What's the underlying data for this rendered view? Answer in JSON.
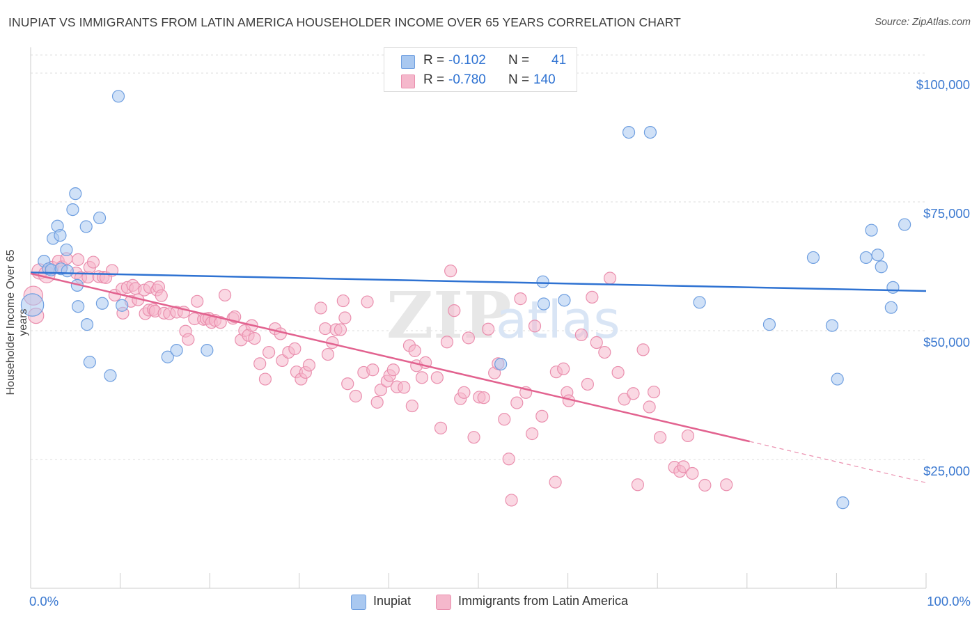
{
  "title": "INUPIAT VS IMMIGRANTS FROM LATIN AMERICA HOUSEHOLDER INCOME OVER 65 YEARS CORRELATION CHART",
  "source": "Source: ZipAtlas.com",
  "watermark": {
    "zip": "ZIP",
    "atlas": "atlas"
  },
  "colors": {
    "inupiat_fill": "#a9c8f0",
    "inupiat_stroke": "#6f9fe0",
    "inupiat_line": "#2e72d2",
    "latin_fill": "#f5b8cc",
    "latin_stroke": "#ea8fae",
    "latin_line": "#e2628f",
    "axis_text": "#3a78d0",
    "grid": "#dddddd"
  },
  "stats": [
    {
      "r_label": "R =",
      "r_value": "-0.102",
      "n_label": "N =",
      "n_value": "41"
    },
    {
      "r_label": "R =",
      "r_value": "-0.780",
      "n_label": "N =",
      "n_value": "140"
    }
  ],
  "chart_data": {
    "type": "scatter",
    "title": "INUPIAT VS IMMIGRANTS FROM LATIN AMERICA HOUSEHOLDER INCOME OVER 65 YEARS CORRELATION CHART",
    "xlabel": "",
    "ylabel": "Householder Income Over 65 years",
    "xlim": [
      0,
      100
    ],
    "ylim": [
      0,
      105000
    ],
    "x_tick_labels": [
      "0.0%",
      "100.0%"
    ],
    "y_ticks": [
      {
        "value": 25000,
        "label": "$25,000"
      },
      {
        "value": 50000,
        "label": "$50,000"
      },
      {
        "value": 75000,
        "label": "$75,000"
      },
      {
        "value": 100000,
        "label": "$100,000"
      }
    ],
    "legend": [
      "Inupiat",
      "Immigrants from Latin America"
    ],
    "series": [
      {
        "name": "Inupiat",
        "trend": {
          "x0": 0,
          "y0": 61300,
          "x1": 100,
          "y1": 57700,
          "solid_until": 100
        },
        "points": [
          [
            0.2,
            55000,
            1.9
          ],
          [
            1.5,
            63500,
            1
          ],
          [
            2,
            62000,
            1
          ],
          [
            2.3,
            61800,
            1
          ],
          [
            2.5,
            67900,
            1
          ],
          [
            3,
            70300,
            1
          ],
          [
            3.3,
            68500,
            1
          ],
          [
            3.4,
            62000,
            1
          ],
          [
            4,
            65700,
            1
          ],
          [
            4.1,
            61600,
            1
          ],
          [
            4.7,
            73500,
            1
          ],
          [
            5,
            76600,
            1
          ],
          [
            5.2,
            58800,
            1
          ],
          [
            5.3,
            54700,
            1
          ],
          [
            6.2,
            70200,
            1
          ],
          [
            6.3,
            51200,
            1
          ],
          [
            6.6,
            43900,
            1
          ],
          [
            7.7,
            71900,
            1
          ],
          [
            8,
            55300,
            1
          ],
          [
            8.9,
            41300,
            1
          ],
          [
            9.8,
            95500,
            1
          ],
          [
            10.2,
            54900,
            1
          ],
          [
            15.3,
            44900,
            1
          ],
          [
            16.3,
            46200,
            1
          ],
          [
            19.7,
            46200,
            1
          ],
          [
            52.5,
            43500,
            1
          ],
          [
            57.2,
            59500,
            1
          ],
          [
            57.3,
            55200,
            1
          ],
          [
            59.6,
            55900,
            1
          ],
          [
            66.8,
            88500,
            1
          ],
          [
            69.2,
            88500,
            1
          ],
          [
            74.7,
            55500,
            1
          ],
          [
            82.5,
            51200,
            1
          ],
          [
            87.4,
            64200,
            1
          ],
          [
            89.5,
            51000,
            1
          ],
          [
            90.1,
            40600,
            1
          ],
          [
            90.7,
            16600,
            1
          ],
          [
            93.3,
            64200,
            1
          ],
          [
            93.9,
            69500,
            1
          ],
          [
            94.6,
            64700,
            1
          ],
          [
            95,
            62400,
            1
          ],
          [
            96.1,
            54500,
            1
          ],
          [
            96.3,
            58400,
            1
          ],
          [
            97.6,
            70600,
            1
          ]
        ]
      },
      {
        "name": "Immigrants from Latin America",
        "trend": {
          "x0": 0,
          "y0": 61100,
          "x1": 100,
          "y1": 20500,
          "solid_until": 80.3
        },
        "points": [
          [
            0.3,
            56800,
            1.6
          ],
          [
            0.6,
            52900,
            1.3
          ],
          [
            1,
            61500,
            1.3
          ],
          [
            1.8,
            60900,
            1.4
          ],
          [
            2.4,
            62200,
            1.1
          ],
          [
            3.1,
            63500,
            1
          ],
          [
            3.5,
            62400,
            1
          ],
          [
            4,
            64000,
            1
          ],
          [
            5.1,
            61200,
            1
          ],
          [
            5.3,
            63800,
            1
          ],
          [
            5.6,
            60300,
            1
          ],
          [
            6.4,
            60400,
            1
          ],
          [
            6.6,
            62300,
            1
          ],
          [
            7,
            63300,
            1
          ],
          [
            7.6,
            60500,
            1
          ],
          [
            8.1,
            60400,
            1
          ],
          [
            8.4,
            60300,
            1
          ],
          [
            9.1,
            61700,
            1
          ],
          [
            9.4,
            56900,
            1
          ],
          [
            10.2,
            58100,
            1
          ],
          [
            10.3,
            53400,
            1
          ],
          [
            10.8,
            58400,
            1
          ],
          [
            11.2,
            55700,
            1
          ],
          [
            11.4,
            58800,
            1
          ],
          [
            11.7,
            58200,
            1
          ],
          [
            12,
            56000,
            1
          ],
          [
            12.7,
            57900,
            1
          ],
          [
            12.8,
            53300,
            1
          ],
          [
            13.2,
            54000,
            1
          ],
          [
            13.3,
            58400,
            1
          ],
          [
            13.7,
            54100,
            1
          ],
          [
            13.9,
            53800,
            1
          ],
          [
            14.1,
            57900,
            1
          ],
          [
            14.3,
            58500,
            1
          ],
          [
            14.6,
            56800,
            1
          ],
          [
            14.9,
            53400,
            1
          ],
          [
            15.5,
            53300,
            1
          ],
          [
            16.3,
            53600,
            1
          ],
          [
            17.1,
            53600,
            1
          ],
          [
            17.3,
            49900,
            1
          ],
          [
            17.6,
            48300,
            1
          ],
          [
            18.3,
            52300,
            1
          ],
          [
            18.6,
            55700,
            1
          ],
          [
            19.3,
            52200,
            1
          ],
          [
            19.6,
            52300,
            1
          ],
          [
            19.9,
            52400,
            1
          ],
          [
            20.2,
            51600,
            1
          ],
          [
            20.6,
            52000,
            1
          ],
          [
            21.2,
            51600,
            1
          ],
          [
            21.7,
            56900,
            1
          ],
          [
            22.6,
            52400,
            1
          ],
          [
            22.8,
            52700,
            1
          ],
          [
            23.5,
            48200,
            1
          ],
          [
            23.9,
            50000,
            1
          ],
          [
            24.3,
            49100,
            1
          ],
          [
            24.7,
            51000,
            1
          ],
          [
            25,
            48500,
            1
          ],
          [
            25.6,
            43600,
            1
          ],
          [
            26.2,
            40600,
            1
          ],
          [
            26.6,
            45800,
            1
          ],
          [
            27.3,
            50400,
            1
          ],
          [
            27.9,
            49400,
            1
          ],
          [
            28.1,
            44200,
            1
          ],
          [
            28.8,
            45800,
            1
          ],
          [
            29.5,
            46500,
            1
          ],
          [
            29.7,
            42000,
            1
          ],
          [
            30.2,
            40600,
            1
          ],
          [
            30.7,
            41900,
            1
          ],
          [
            31.1,
            43300,
            1
          ],
          [
            32.4,
            54400,
            1
          ],
          [
            32.9,
            50400,
            1
          ],
          [
            33.2,
            45400,
            1
          ],
          [
            33.7,
            47700,
            1
          ],
          [
            34.1,
            50200,
            1
          ],
          [
            34.6,
            50200,
            1
          ],
          [
            34.9,
            55800,
            1
          ],
          [
            35.1,
            52500,
            1
          ],
          [
            35.4,
            39700,
            1
          ],
          [
            36.3,
            37300,
            1
          ],
          [
            37.2,
            41900,
            1
          ],
          [
            37.6,
            55600,
            1
          ],
          [
            38.2,
            42400,
            1
          ],
          [
            38.7,
            36100,
            1
          ],
          [
            39.1,
            38500,
            1
          ],
          [
            39.8,
            40200,
            1
          ],
          [
            40.1,
            41300,
            1
          ],
          [
            40.5,
            42400,
            1
          ],
          [
            40.9,
            39100,
            1
          ],
          [
            41.7,
            39000,
            1
          ],
          [
            42.3,
            47100,
            1
          ],
          [
            42.6,
            35400,
            1
          ],
          [
            42.9,
            46100,
            1
          ],
          [
            43.1,
            43200,
            1
          ],
          [
            43.7,
            40900,
            1
          ],
          [
            44.1,
            43800,
            1
          ],
          [
            45.4,
            40900,
            1
          ],
          [
            45.8,
            31100,
            1
          ],
          [
            46.5,
            47800,
            1
          ],
          [
            46.9,
            61600,
            1
          ],
          [
            47.3,
            53900,
            1
          ],
          [
            48,
            36800,
            1
          ],
          [
            48.4,
            38000,
            1
          ],
          [
            48.9,
            48600,
            1
          ],
          [
            49.5,
            29300,
            1
          ],
          [
            50.1,
            37100,
            1
          ],
          [
            50.6,
            37000,
            1
          ],
          [
            51.1,
            50300,
            1
          ],
          [
            51.8,
            41800,
            1
          ],
          [
            52.2,
            43600,
            1
          ],
          [
            52.9,
            32800,
            1
          ],
          [
            53.4,
            25100,
            1
          ],
          [
            53.7,
            17100,
            1
          ],
          [
            54.3,
            36000,
            1
          ],
          [
            54.7,
            56200,
            1
          ],
          [
            55.3,
            38000,
            1
          ],
          [
            56,
            30000,
            1
          ],
          [
            56.3,
            50900,
            1
          ],
          [
            57.1,
            33400,
            1
          ],
          [
            58.6,
            20600,
            1
          ],
          [
            58.7,
            42000,
            1
          ],
          [
            59.5,
            42600,
            1
          ],
          [
            59.9,
            38000,
            1
          ],
          [
            60.1,
            36400,
            1
          ],
          [
            61.5,
            49200,
            1
          ],
          [
            62.2,
            39600,
            1
          ],
          [
            62.7,
            56500,
            1
          ],
          [
            63.2,
            47700,
            1
          ],
          [
            64.1,
            45800,
            1
          ],
          [
            64.7,
            60200,
            1
          ],
          [
            65.6,
            41900,
            1
          ],
          [
            66.3,
            36700,
            1
          ],
          [
            67.3,
            37800,
            1
          ],
          [
            67.8,
            20100,
            1
          ],
          [
            68.4,
            46300,
            1
          ],
          [
            69.1,
            35200,
            1
          ],
          [
            69.6,
            38100,
            1
          ],
          [
            70.3,
            29300,
            1
          ],
          [
            71.9,
            23500,
            1
          ],
          [
            72.5,
            22700,
            1
          ],
          [
            72.9,
            23600,
            1
          ],
          [
            73.4,
            29600,
            1
          ],
          [
            73.9,
            22300,
            1
          ],
          [
            75.3,
            20000,
            1
          ],
          [
            77.7,
            20100,
            1
          ]
        ]
      }
    ]
  }
}
